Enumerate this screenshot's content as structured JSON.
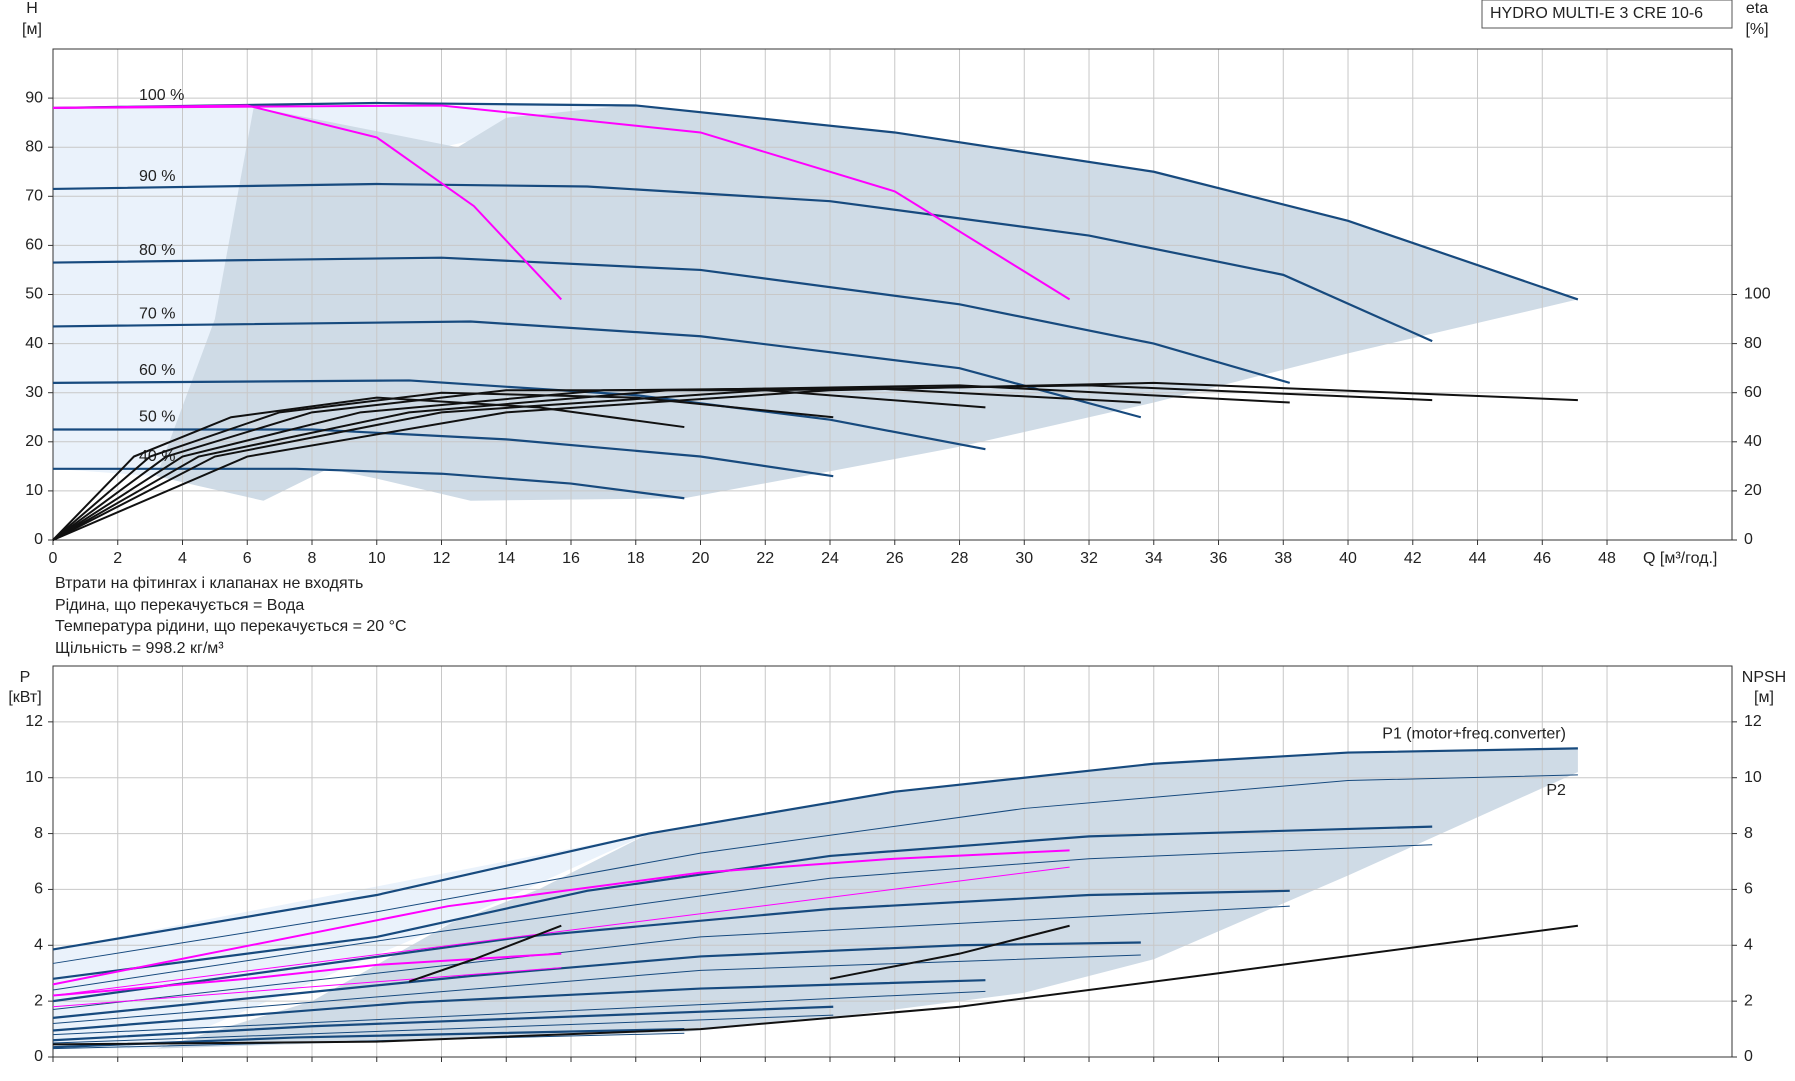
{
  "notes": [
    "Втрати на фітингах і клапанах не входять",
    "Рідина, що перекачується = Вода",
    "Температура рідини, що перекачується = 20 °C",
    "Щільність = 998.2 кг/м³"
  ],
  "chart_data": [
    {
      "type": "line",
      "title": "HYDRO MULTI-E 3 CRE 10-6",
      "xlabel": "Q [м³/год.]",
      "ylabel": "H",
      "yunit": "[м]",
      "y2label": "eta",
      "y2unit": "[%]",
      "xlim": [
        0,
        51.86
      ],
      "xticks": [
        0,
        2,
        4,
        6,
        8,
        10,
        12,
        14,
        16,
        18,
        20,
        22,
        24,
        26,
        28,
        30,
        32,
        34,
        36,
        38,
        40,
        42,
        44,
        46,
        48
      ],
      "xtick_labels": true,
      "ylim": [
        0,
        100
      ],
      "yticks": [
        0,
        10,
        20,
        30,
        40,
        50,
        60,
        70,
        80,
        90
      ],
      "y2lim": [
        0,
        200
      ],
      "y2ticks": [
        0,
        20,
        40,
        60,
        80,
        100
      ],
      "grid": true,
      "series": [
        {
          "label": "100 %",
          "color": "#174a7e",
          "width": 2.2,
          "x": [
            0,
            10,
            18,
            26,
            34,
            40,
            47.1
          ],
          "values": [
            88,
            89,
            88.5,
            83,
            75,
            65,
            49
          ]
        },
        {
          "label": "90 %",
          "color": "#174a7e",
          "width": 2.2,
          "x": [
            0,
            10,
            16.5,
            24,
            32,
            38,
            42.6
          ],
          "values": [
            71.5,
            72.5,
            72,
            69,
            62,
            54,
            40.5
          ]
        },
        {
          "label": "80 %",
          "color": "#174a7e",
          "width": 2.2,
          "x": [
            0,
            12,
            20,
            28,
            34,
            38.2
          ],
          "values": [
            56.5,
            57.5,
            55,
            48,
            40,
            32
          ]
        },
        {
          "label": "70 %",
          "color": "#174a7e",
          "width": 2.2,
          "x": [
            0,
            12.9,
            20,
            28,
            33.6
          ],
          "values": [
            43.5,
            44.5,
            41.5,
            35,
            25
          ]
        },
        {
          "label": "60 %",
          "color": "#174a7e",
          "width": 2.2,
          "x": [
            0,
            11,
            18,
            24,
            28.8
          ],
          "values": [
            32,
            32.5,
            29.5,
            24.5,
            18.5
          ]
        },
        {
          "label": "50 %",
          "color": "#174a7e",
          "width": 2.2,
          "x": [
            0,
            8,
            14,
            20,
            24.1
          ],
          "values": [
            22.5,
            22.5,
            20.5,
            17,
            13
          ]
        },
        {
          "label": "40 %",
          "color": "#174a7e",
          "width": 2.2,
          "x": [
            0,
            7.5,
            12,
            16,
            19.5
          ],
          "values": [
            14.5,
            14.5,
            13.5,
            11.5,
            8.5
          ]
        },
        {
          "color": "#ff00ff",
          "width": 2,
          "x": [
            0,
            6,
            10,
            13,
            15.7
          ],
          "values": [
            88,
            88.5,
            82,
            68,
            49
          ]
        },
        {
          "color": "#ff00ff",
          "width": 2,
          "x": [
            0,
            12,
            20,
            26,
            31.4
          ],
          "values": [
            88,
            88.5,
            83,
            71,
            49
          ]
        },
        {
          "color": "#111111",
          "width": 2,
          "axis": "y2",
          "x": [
            0,
            6,
            14,
            24,
            34,
            47.1
          ],
          "values": [
            0,
            34,
            52,
            61,
            64,
            57
          ]
        },
        {
          "color": "#111111",
          "width": 2,
          "axis": "y2",
          "x": [
            0,
            5,
            12,
            22,
            32,
            42.6
          ],
          "values": [
            0,
            34,
            52,
            61,
            63,
            57
          ]
        },
        {
          "color": "#111111",
          "width": 2,
          "axis": "y2",
          "x": [
            0,
            4.5,
            11,
            19,
            28,
            38.2
          ],
          "values": [
            0,
            34,
            52,
            61,
            63,
            56
          ]
        },
        {
          "color": "#111111",
          "width": 2,
          "axis": "y2",
          "x": [
            0,
            4,
            9.5,
            17,
            25,
            33.6
          ],
          "values": [
            0,
            34,
            52,
            61,
            62,
            56
          ]
        },
        {
          "color": "#111111",
          "width": 2,
          "axis": "y2",
          "x": [
            0,
            3.5,
            8,
            14,
            22,
            28.8
          ],
          "values": [
            0,
            34,
            52,
            61,
            61,
            54
          ]
        },
        {
          "color": "#111111",
          "width": 2,
          "axis": "y2",
          "x": [
            0,
            3,
            7,
            12,
            18,
            24.1
          ],
          "values": [
            0,
            34,
            52,
            60,
            58,
            50
          ]
        },
        {
          "color": "#111111",
          "width": 2,
          "axis": "y2",
          "x": [
            0,
            2.5,
            5.5,
            10,
            15,
            19.5
          ],
          "values": [
            0,
            34,
            50,
            58,
            54,
            46
          ]
        }
      ]
    },
    {
      "type": "line",
      "ylabel": "P",
      "yunit": "[кВт]",
      "y2label": "NPSH",
      "y2unit": "[м]",
      "xlim": [
        0,
        51.86
      ],
      "xticks": [
        0,
        2,
        4,
        6,
        8,
        10,
        12,
        14,
        16,
        18,
        20,
        22,
        24,
        26,
        28,
        30,
        32,
        34,
        36,
        38,
        40,
        42,
        44,
        46,
        48
      ],
      "xtick_labels": false,
      "ylim": [
        0,
        14
      ],
      "yticks": [
        0,
        2,
        4,
        6,
        8,
        10,
        12
      ],
      "y2lim": [
        0,
        14
      ],
      "y2ticks": [
        0,
        2,
        4,
        6,
        8,
        10,
        12
      ],
      "grid": true,
      "series": [
        {
          "name": "P1 (motor+freq.converter)",
          "color": "#174a7e",
          "width": 2.2,
          "x": [
            0,
            10,
            18.4,
            26,
            34,
            40,
            47.1
          ],
          "values": [
            3.85,
            5.8,
            8,
            9.5,
            10.5,
            10.9,
            11.05
          ]
        },
        {
          "name": "P2",
          "color": "#174a7e",
          "width": 1,
          "x": [
            0,
            10,
            20,
            30,
            40,
            47.1
          ],
          "values": [
            3.35,
            5.2,
            7.3,
            8.9,
            9.9,
            10.1
          ]
        },
        {
          "color": "#174a7e",
          "width": 2.2,
          "x": [
            0,
            10,
            16.5,
            24,
            32,
            42.6
          ],
          "values": [
            2.8,
            4.3,
            5.95,
            7.2,
            7.9,
            8.25
          ]
        },
        {
          "color": "#174a7e",
          "width": 1,
          "x": [
            0,
            12,
            24,
            32,
            42.6
          ],
          "values": [
            2.4,
            4.5,
            6.4,
            7.1,
            7.6
          ]
        },
        {
          "color": "#174a7e",
          "width": 2.2,
          "x": [
            0,
            14.5,
            24,
            32,
            38.2
          ],
          "values": [
            2,
            4.3,
            5.3,
            5.8,
            5.95
          ]
        },
        {
          "color": "#174a7e",
          "width": 1,
          "x": [
            0,
            20,
            38.2
          ],
          "values": [
            1.7,
            4.3,
            5.4
          ]
        },
        {
          "color": "#174a7e",
          "width": 2.2,
          "x": [
            0,
            12.9,
            20,
            28,
            33.6
          ],
          "values": [
            1.4,
            2.9,
            3.6,
            4,
            4.1
          ]
        },
        {
          "color": "#174a7e",
          "width": 1,
          "x": [
            0,
            20,
            33.6
          ],
          "values": [
            1.2,
            3.1,
            3.65
          ]
        },
        {
          "color": "#174a7e",
          "width": 2.2,
          "x": [
            0,
            11,
            20,
            28.8
          ],
          "values": [
            0.95,
            1.95,
            2.45,
            2.75
          ]
        },
        {
          "color": "#174a7e",
          "width": 1,
          "x": [
            0,
            28.8
          ],
          "values": [
            0.8,
            2.35
          ]
        },
        {
          "color": "#174a7e",
          "width": 2.2,
          "x": [
            0,
            8,
            24.1
          ],
          "values": [
            0.6,
            1.1,
            1.8
          ]
        },
        {
          "color": "#174a7e",
          "width": 1,
          "x": [
            0,
            24.1
          ],
          "values": [
            0.5,
            1.5
          ]
        },
        {
          "color": "#174a7e",
          "width": 2.2,
          "x": [
            0,
            7.5,
            19.5
          ],
          "values": [
            0.35,
            0.7,
            1
          ]
        },
        {
          "color": "#174a7e",
          "width": 1,
          "x": [
            0,
            19.5
          ],
          "values": [
            0.3,
            0.85
          ]
        },
        {
          "color": "#ff00ff",
          "width": 2,
          "x": [
            0,
            6,
            10,
            15.7
          ],
          "values": [
            2.2,
            2.8,
            3.3,
            3.7
          ]
        },
        {
          "color": "#ff00ff",
          "width": 1,
          "x": [
            0,
            15.7
          ],
          "values": [
            1.8,
            3.2
          ]
        },
        {
          "color": "#ff00ff",
          "width": 2,
          "x": [
            0,
            12.2,
            20,
            26,
            31.4
          ],
          "values": [
            2.6,
            5.4,
            6.6,
            7.1,
            7.4
          ]
        },
        {
          "color": "#ff00ff",
          "width": 1,
          "x": [
            0,
            31.4
          ],
          "values": [
            2.2,
            6.8
          ]
        },
        {
          "color": "#111111",
          "width": 2,
          "axis": "y2",
          "x": [
            0,
            10,
            20,
            28,
            36,
            47.1
          ],
          "values": [
            0.45,
            0.55,
            1,
            1.8,
            3,
            4.7
          ]
        },
        {
          "color": "#111111",
          "width": 2,
          "axis": "y2",
          "x": [
            11,
            13,
            15.7
          ],
          "values": [
            2.7,
            3.5,
            4.7
          ]
        },
        {
          "color": "#111111",
          "width": 2,
          "axis": "y2",
          "x": [
            24,
            28,
            31.4
          ],
          "values": [
            2.8,
            3.7,
            4.7
          ]
        }
      ]
    }
  ]
}
